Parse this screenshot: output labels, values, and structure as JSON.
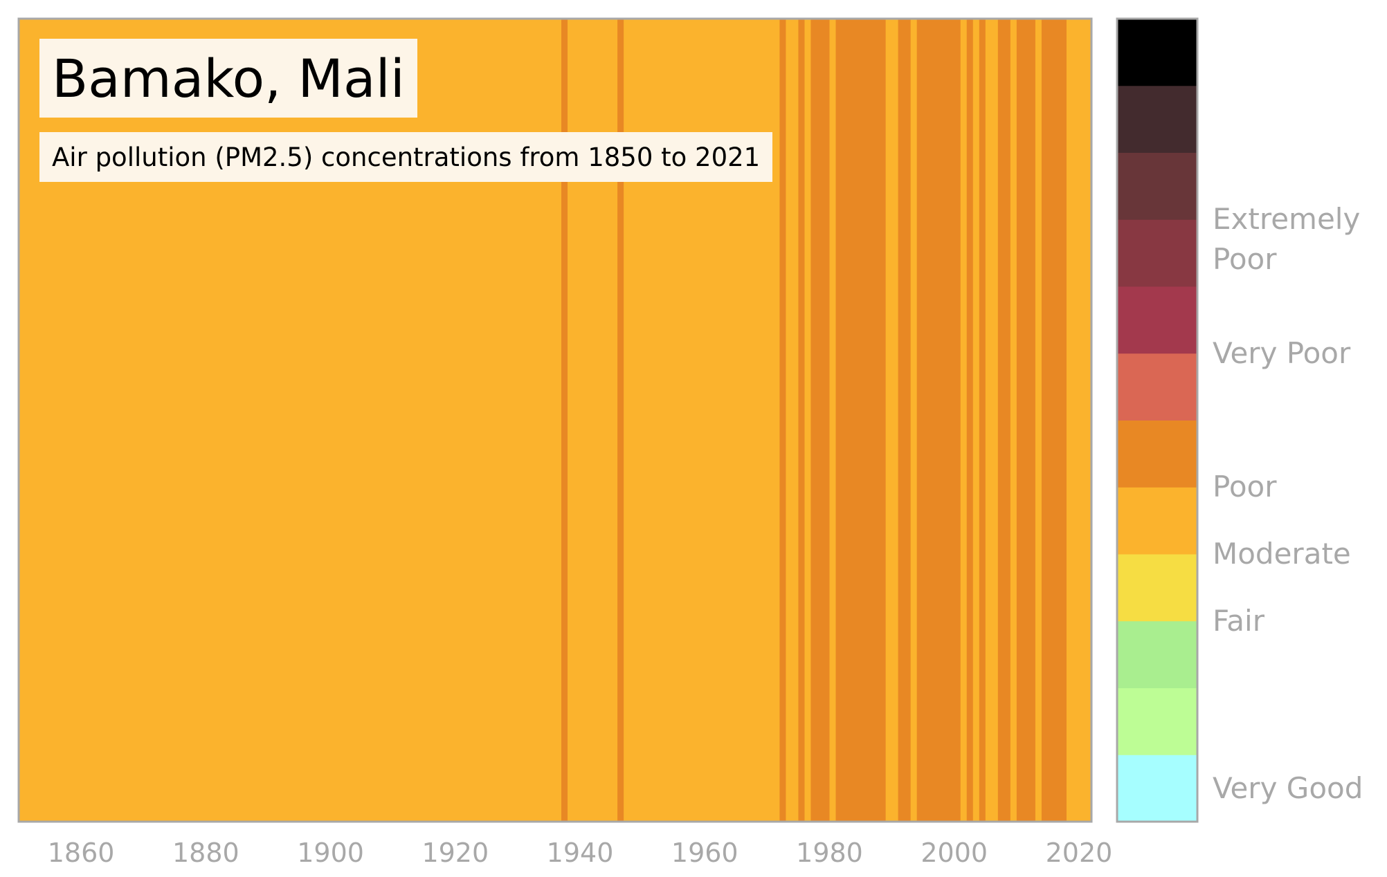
{
  "title": "Bamako, Mali",
  "subtitle": "Air pollution (PM2.5) concentrations from 1850 to 2021",
  "chart_data": {
    "type": "heatmap",
    "xlim": [
      1850,
      2022
    ],
    "x_ticks": [
      "1860",
      "1880",
      "1900",
      "1920",
      "1940",
      "1960",
      "1980",
      "2000",
      "2020"
    ],
    "category_colors": {
      "Moderate": "#fbb32d",
      "Poor": "#e88824"
    },
    "stripes": [
      {
        "start": 1850,
        "end": 1937,
        "category": "Moderate"
      },
      {
        "start": 1937,
        "end": 1938,
        "category": "Poor"
      },
      {
        "start": 1938,
        "end": 1946,
        "category": "Moderate"
      },
      {
        "start": 1946,
        "end": 1947,
        "category": "Poor"
      },
      {
        "start": 1947,
        "end": 1972,
        "category": "Moderate"
      },
      {
        "start": 1972,
        "end": 1973,
        "category": "Poor"
      },
      {
        "start": 1973,
        "end": 1975,
        "category": "Moderate"
      },
      {
        "start": 1975,
        "end": 1976,
        "category": "Poor"
      },
      {
        "start": 1976,
        "end": 1977,
        "category": "Moderate"
      },
      {
        "start": 1977,
        "end": 1980,
        "category": "Poor"
      },
      {
        "start": 1980,
        "end": 1981,
        "category": "Moderate"
      },
      {
        "start": 1981,
        "end": 1989,
        "category": "Poor"
      },
      {
        "start": 1989,
        "end": 1991,
        "category": "Moderate"
      },
      {
        "start": 1991,
        "end": 1993,
        "category": "Poor"
      },
      {
        "start": 1993,
        "end": 1994,
        "category": "Moderate"
      },
      {
        "start": 1994,
        "end": 2001,
        "category": "Poor"
      },
      {
        "start": 2001,
        "end": 2002,
        "category": "Moderate"
      },
      {
        "start": 2002,
        "end": 2003,
        "category": "Poor"
      },
      {
        "start": 2003,
        "end": 2004,
        "category": "Moderate"
      },
      {
        "start": 2004,
        "end": 2005,
        "category": "Poor"
      },
      {
        "start": 2005,
        "end": 2007,
        "category": "Moderate"
      },
      {
        "start": 2007,
        "end": 2009,
        "category": "Poor"
      },
      {
        "start": 2009,
        "end": 2010,
        "category": "Moderate"
      },
      {
        "start": 2010,
        "end": 2013,
        "category": "Poor"
      },
      {
        "start": 2013,
        "end": 2014,
        "category": "Moderate"
      },
      {
        "start": 2014,
        "end": 2018,
        "category": "Poor"
      },
      {
        "start": 2018,
        "end": 2022,
        "category": "Moderate"
      }
    ],
    "colorbar": {
      "colors_bottom_to_top": [
        "#a6feff",
        "#bdfd95",
        "#a9ee8f",
        "#f6dd43",
        "#fbb32d",
        "#e88824",
        "#da6754",
        "#a3394d",
        "#883842",
        "#683639",
        "#432b2e",
        "#000000"
      ],
      "labels": [
        {
          "text": "Very Good",
          "level": 0.5
        },
        {
          "text": "Fair",
          "level": 3
        },
        {
          "text": "Moderate",
          "level": 4
        },
        {
          "text": "Poor",
          "level": 5
        },
        {
          "text": "Very Poor",
          "level": 7
        },
        {
          "text": "Extremely\nPoor",
          "level": 8.7
        }
      ]
    }
  }
}
